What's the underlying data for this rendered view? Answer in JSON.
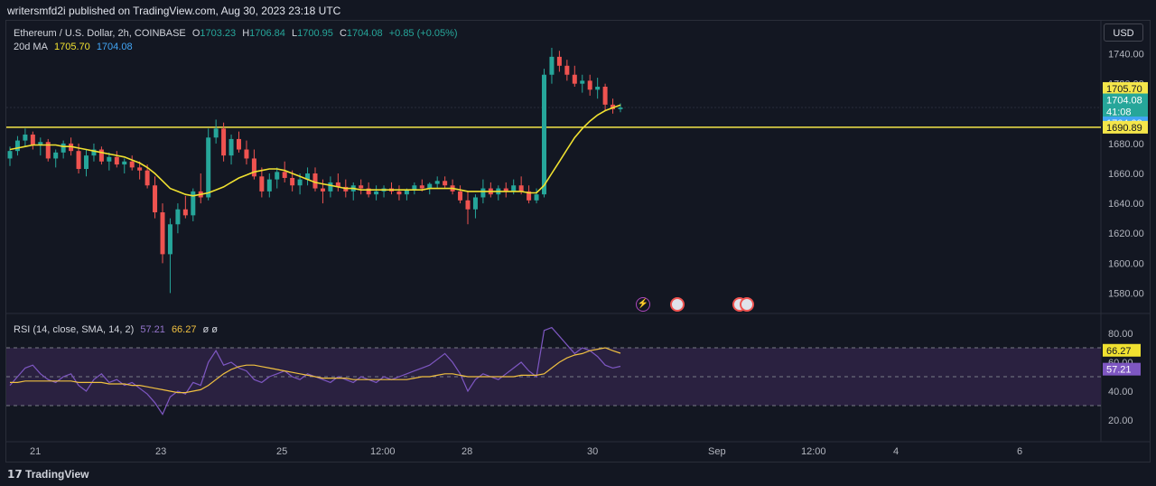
{
  "header": {
    "publish_line": "writersmfd2i published on TradingView.com, Aug 30, 2023 23:18 UTC"
  },
  "legend": {
    "symbol": "Ethereum / U.S. Dollar, 2h, COINBASE",
    "o_label": "O",
    "o": "1703.23",
    "h_label": "H",
    "h": "1706.84",
    "l_label": "L",
    "l": "1700.95",
    "c_label": "C",
    "c": "1704.08",
    "change": "+0.85 (+0.05%)",
    "ma_label": "20d MA",
    "ma_value1": "1705.70",
    "ma_value2": "1704.08",
    "rsi_label": "RSI (14, close, SMA, 14, 2)",
    "rsi_value": "57.21",
    "rsi_sma_value": "66.27",
    "rsi_extra": "ø  ø"
  },
  "currency_button": "USD",
  "footer": {
    "logo_text": "TradingView"
  },
  "colors": {
    "bg": "#131722",
    "up": "#26a69a",
    "down": "#ef5350",
    "ma": "#f0e130",
    "hline": "#f5e64a",
    "rsi": "#7e57c2",
    "rsi_sma": "#f0c040",
    "rsi_band": "#2a2140"
  },
  "chart_data": {
    "type": "candlestick",
    "price_axis": {
      "min": 1570,
      "max": 1750,
      "ticks": [
        "1740.00",
        "1720.00",
        "1700.00",
        "1680.00",
        "1660.00",
        "1640.00",
        "1620.00",
        "1600.00",
        "1580.00"
      ]
    },
    "price_labels": {
      "ma": "1705.70",
      "last": "1704.08",
      "countdown": "41:08",
      "close2": "1704.08",
      "hline": "1690.89"
    },
    "horizontal_line": 1690.89,
    "x_axis": {
      "labels": [
        "21",
        "23",
        "25",
        "12:00",
        "28",
        "30",
        "Sep",
        "12:00",
        "4",
        "6"
      ]
    },
    "ohlc": [
      [
        1670,
        1678,
        1665,
        1675
      ],
      [
        1675,
        1685,
        1672,
        1682
      ],
      [
        1682,
        1690,
        1678,
        1686
      ],
      [
        1686,
        1688,
        1676,
        1679
      ],
      [
        1679,
        1684,
        1672,
        1681
      ],
      [
        1681,
        1683,
        1668,
        1670
      ],
      [
        1670,
        1676,
        1664,
        1674
      ],
      [
        1674,
        1682,
        1670,
        1680
      ],
      [
        1680,
        1684,
        1672,
        1675
      ],
      [
        1675,
        1680,
        1660,
        1663
      ],
      [
        1663,
        1676,
        1658,
        1672
      ],
      [
        1672,
        1680,
        1668,
        1676
      ],
      [
        1676,
        1678,
        1666,
        1668
      ],
      [
        1668,
        1674,
        1662,
        1671
      ],
      [
        1671,
        1675,
        1664,
        1666
      ],
      [
        1666,
        1670,
        1660,
        1668
      ],
      [
        1668,
        1672,
        1662,
        1664
      ],
      [
        1664,
        1668,
        1656,
        1662
      ],
      [
        1662,
        1666,
        1650,
        1652
      ],
      [
        1652,
        1658,
        1630,
        1634
      ],
      [
        1634,
        1640,
        1600,
        1606
      ],
      [
        1606,
        1630,
        1580,
        1626
      ],
      [
        1626,
        1640,
        1620,
        1636
      ],
      [
        1636,
        1645,
        1630,
        1632
      ],
      [
        1632,
        1650,
        1628,
        1648
      ],
      [
        1648,
        1660,
        1640,
        1644
      ],
      [
        1644,
        1690,
        1642,
        1684
      ],
      [
        1684,
        1696,
        1680,
        1690
      ],
      [
        1690,
        1694,
        1668,
        1672
      ],
      [
        1672,
        1686,
        1666,
        1683
      ],
      [
        1683,
        1688,
        1674,
        1676
      ],
      [
        1676,
        1682,
        1666,
        1670
      ],
      [
        1670,
        1676,
        1656,
        1658
      ],
      [
        1658,
        1664,
        1644,
        1648
      ],
      [
        1648,
        1660,
        1644,
        1656
      ],
      [
        1656,
        1664,
        1650,
        1661
      ],
      [
        1661,
        1668,
        1654,
        1657
      ],
      [
        1657,
        1662,
        1648,
        1652
      ],
      [
        1652,
        1660,
        1646,
        1656
      ],
      [
        1656,
        1664,
        1652,
        1660
      ],
      [
        1660,
        1664,
        1648,
        1650
      ],
      [
        1650,
        1656,
        1640,
        1648
      ],
      [
        1648,
        1658,
        1644,
        1654
      ],
      [
        1654,
        1660,
        1648,
        1651
      ],
      [
        1651,
        1656,
        1644,
        1648
      ],
      [
        1648,
        1654,
        1642,
        1652
      ],
      [
        1652,
        1656,
        1646,
        1650
      ],
      [
        1650,
        1654,
        1644,
        1646
      ],
      [
        1646,
        1652,
        1642,
        1648
      ],
      [
        1648,
        1652,
        1644,
        1650
      ],
      [
        1650,
        1654,
        1646,
        1648
      ],
      [
        1648,
        1652,
        1642,
        1646
      ],
      [
        1646,
        1650,
        1642,
        1649
      ],
      [
        1649,
        1654,
        1646,
        1652
      ],
      [
        1652,
        1656,
        1648,
        1650
      ],
      [
        1650,
        1654,
        1646,
        1653
      ],
      [
        1653,
        1658,
        1650,
        1655
      ],
      [
        1655,
        1658,
        1650,
        1652
      ],
      [
        1652,
        1656,
        1646,
        1648
      ],
      [
        1648,
        1652,
        1640,
        1642
      ],
      [
        1642,
        1648,
        1626,
        1636
      ],
      [
        1636,
        1646,
        1630,
        1644
      ],
      [
        1644,
        1656,
        1640,
        1650
      ],
      [
        1650,
        1654,
        1644,
        1646
      ],
      [
        1646,
        1652,
        1642,
        1650
      ],
      [
        1650,
        1654,
        1644,
        1648
      ],
      [
        1648,
        1656,
        1646,
        1652
      ],
      [
        1652,
        1658,
        1646,
        1648
      ],
      [
        1648,
        1652,
        1640,
        1642
      ],
      [
        1642,
        1650,
        1640,
        1646
      ],
      [
        1646,
        1730,
        1644,
        1726
      ],
      [
        1726,
        1744,
        1720,
        1738
      ],
      [
        1738,
        1742,
        1728,
        1732
      ],
      [
        1732,
        1736,
        1722,
        1726
      ],
      [
        1726,
        1732,
        1718,
        1720
      ],
      [
        1720,
        1726,
        1714,
        1722
      ],
      [
        1722,
        1726,
        1712,
        1716
      ],
      [
        1716,
        1724,
        1710,
        1718
      ],
      [
        1718,
        1720,
        1702,
        1706
      ],
      [
        1706,
        1710,
        1700,
        1703
      ],
      [
        1703,
        1706.84,
        1700.95,
        1704.08
      ]
    ],
    "ma20": [
      1676,
      1677,
      1678,
      1679,
      1679,
      1679,
      1679,
      1678,
      1678,
      1677,
      1676,
      1675,
      1674,
      1673,
      1672,
      1671,
      1669,
      1667,
      1664,
      1660,
      1655,
      1650,
      1648,
      1646,
      1645,
      1646,
      1647,
      1649,
      1651,
      1654,
      1657,
      1659,
      1661,
      1662,
      1663,
      1663,
      1662,
      1660,
      1658,
      1656,
      1654,
      1653,
      1652,
      1651,
      1650,
      1650,
      1649,
      1649,
      1649,
      1649,
      1649,
      1649,
      1649,
      1649,
      1649,
      1650,
      1650,
      1650,
      1650,
      1649,
      1648,
      1648,
      1648,
      1648,
      1648,
      1648,
      1648,
      1648,
      1647,
      1647,
      1652,
      1660,
      1668,
      1676,
      1684,
      1690,
      1695,
      1699,
      1702,
      1704,
      1705.7
    ],
    "rsi": {
      "axis_ticks": [
        "80.00",
        "60.00",
        "40.00",
        "20.00"
      ],
      "upper_band": 70,
      "lower_band": 30,
      "middle": 50,
      "values": [
        44,
        50,
        56,
        58,
        52,
        48,
        46,
        50,
        52,
        44,
        40,
        48,
        52,
        46,
        48,
        44,
        46,
        42,
        38,
        32,
        24,
        36,
        40,
        38,
        46,
        44,
        60,
        68,
        58,
        60,
        56,
        54,
        48,
        46,
        50,
        52,
        54,
        50,
        48,
        52,
        50,
        48,
        46,
        50,
        48,
        46,
        50,
        48,
        46,
        50,
        48,
        50,
        52,
        54,
        56,
        58,
        62,
        66,
        60,
        52,
        40,
        48,
        52,
        50,
        48,
        52,
        56,
        60,
        54,
        50,
        82,
        84,
        78,
        72,
        66,
        70,
        68,
        64,
        58,
        56,
        57.21
      ],
      "sma": [
        46,
        46,
        47,
        47,
        47,
        47,
        47,
        47,
        47,
        46,
        46,
        46,
        46,
        45,
        45,
        45,
        44,
        44,
        43,
        42,
        41,
        40,
        39,
        39,
        40,
        41,
        44,
        48,
        52,
        55,
        57,
        58,
        58,
        57,
        56,
        55,
        54,
        53,
        52,
        51,
        50,
        49,
        49,
        49,
        49,
        48,
        48,
        48,
        48,
        48,
        48,
        48,
        48,
        49,
        50,
        50,
        51,
        52,
        52,
        51,
        50,
        50,
        50,
        50,
        50,
        50,
        50,
        51,
        51,
        51,
        52,
        56,
        60,
        63,
        65,
        66,
        68,
        69,
        70,
        68,
        66.27
      ]
    }
  }
}
